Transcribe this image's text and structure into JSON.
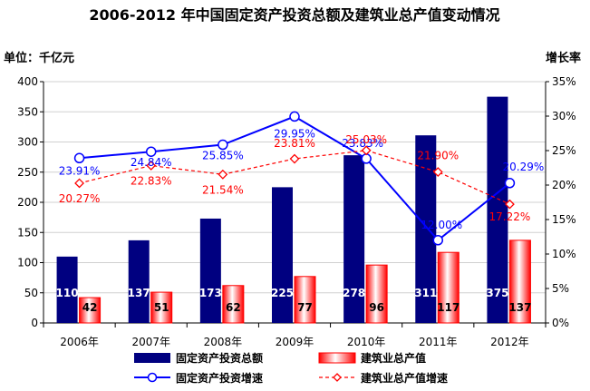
{
  "chart_data": {
    "type": "bar",
    "title": "2006-2012 年中国固定资产投资总额及建筑业总产值变动情况",
    "ylabel_left": "单位：千亿元",
    "ylabel_right": "增长率",
    "categories": [
      "2006年",
      "2007年",
      "2008年",
      "2009年",
      "2010年",
      "2011年",
      "2012年"
    ],
    "ylim_left": [
      0,
      400
    ],
    "yticks_left": [
      "0",
      "50",
      "100",
      "150",
      "200",
      "250",
      "300",
      "350",
      "400"
    ],
    "ylim_right": [
      0,
      35
    ],
    "yticks_right": [
      "0%",
      "5%",
      "10%",
      "15%",
      "20%",
      "25%",
      "30%",
      "35%"
    ],
    "bar_series": [
      {
        "name": "固定资产投资总额",
        "color": "#000080",
        "values": [
          110,
          137,
          173,
          225,
          278,
          311,
          375
        ]
      },
      {
        "name": "建筑业总产值",
        "color": "#ff0000",
        "values": [
          42,
          51,
          62,
          77,
          96,
          117,
          137
        ]
      }
    ],
    "line_series": [
      {
        "name": "固定资产投资增速",
        "color": "#0000ff",
        "style": "solid",
        "marker": "circle",
        "values": [
          23.91,
          24.84,
          25.85,
          29.95,
          23.83,
          12.0,
          20.29
        ],
        "labels": [
          "23.91%",
          "24.84%",
          "25.85%",
          "29.95%",
          "23.83%",
          "12.00%",
          "20.29%"
        ]
      },
      {
        "name": "建筑业总产值增速",
        "color": "#ff0000",
        "style": "dashed",
        "marker": "diamond",
        "values": [
          20.27,
          22.83,
          21.54,
          23.81,
          25.03,
          21.9,
          17.22
        ],
        "labels": [
          "20.27%",
          "22.83%",
          "21.54%",
          "23.81%",
          "25.03%",
          "21.90%",
          "17.22%"
        ]
      }
    ],
    "legend_position": "bottom",
    "grid": "horizontal"
  }
}
